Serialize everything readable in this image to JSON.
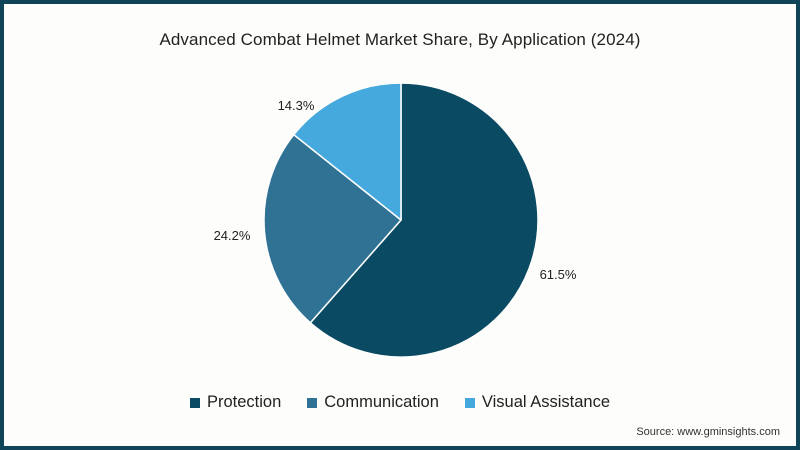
{
  "chart_data": {
    "type": "pie",
    "title": "Advanced Combat Helmet Market Share, By  Application (2024)",
    "categories": [
      "Protection",
      "Communication",
      "Visual Assistance"
    ],
    "values": [
      61.5,
      24.2,
      14.3
    ],
    "labels": [
      "61.5%",
      "24.2%",
      "14.3%"
    ],
    "colors": [
      "#0a4a63",
      "#2f7294",
      "#45a9dd"
    ],
    "start_angle_deg": 0,
    "direction": "clockwise",
    "legend_position": "bottom",
    "source": "Source: www.gminsights.com"
  },
  "colors": {
    "border": "#0f4459",
    "background": "#fdfdfb"
  },
  "legend": [
    {
      "label": "Protection",
      "color": "#0a4a63"
    },
    {
      "label": "Communication",
      "color": "#2f7294"
    },
    {
      "label": "Visual Assistance",
      "color": "#45a9dd"
    }
  ]
}
